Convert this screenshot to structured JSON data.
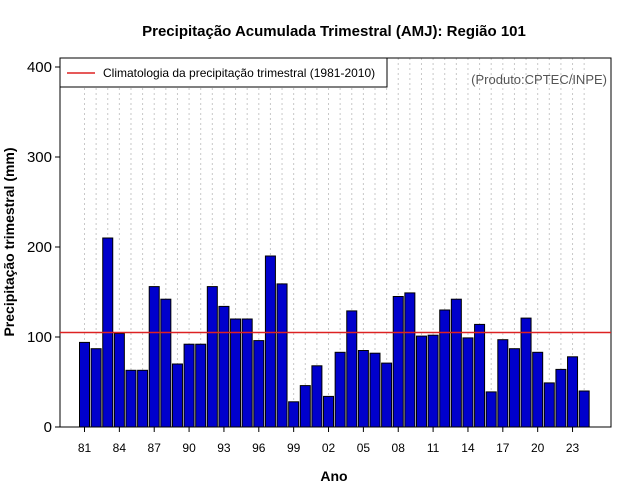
{
  "chart_data": {
    "type": "bar",
    "title": "Precipitação Acumulada Trimestral (AMJ): Região 101",
    "xlabel": "Ano",
    "ylabel": "Precipitação trimestral (mm)",
    "ylim": [
      0,
      400
    ],
    "yticks": [
      0,
      100,
      200,
      300,
      400
    ],
    "xtick_labels": [
      "81",
      "84",
      "87",
      "90",
      "93",
      "96",
      "99",
      "02",
      "05",
      "08",
      "11",
      "14",
      "17",
      "20",
      "23"
    ],
    "categories": [
      "1981",
      "1982",
      "1983",
      "1984",
      "1985",
      "1986",
      "1987",
      "1988",
      "1989",
      "1990",
      "1991",
      "1992",
      "1993",
      "1994",
      "1995",
      "1996",
      "1997",
      "1998",
      "1999",
      "2000",
      "2001",
      "2002",
      "2003",
      "2004",
      "2005",
      "2006",
      "2007",
      "2008",
      "2009",
      "2010",
      "2011",
      "2012",
      "2013",
      "2014",
      "2015",
      "2016",
      "2017",
      "2018",
      "2019",
      "2020",
      "2021",
      "2022",
      "2023",
      "2024"
    ],
    "values": [
      94,
      87,
      210,
      104,
      63,
      63,
      156,
      142,
      70,
      92,
      92,
      156,
      134,
      120,
      120,
      96,
      190,
      159,
      28,
      46,
      68,
      34,
      83,
      129,
      85,
      82,
      71,
      145,
      149,
      101,
      102,
      130,
      142,
      99,
      114,
      39,
      97,
      87,
      121,
      83,
      49,
      64,
      78,
      40
    ],
    "bar_color": "#0000cc",
    "climatology": {
      "value": 105,
      "label": "Climatologia da precipitação trimestral (1981-2010)",
      "color": "#dd2222"
    },
    "legend_position": "top-left",
    "grid": "vertical-dotted",
    "annotation": "(Produto:CPTEC/INPE)"
  }
}
